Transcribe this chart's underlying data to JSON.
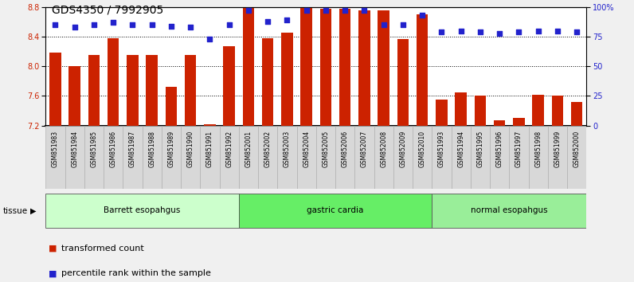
{
  "title": "GDS4350 / 7992905",
  "samples": [
    "GSM851983",
    "GSM851984",
    "GSM851985",
    "GSM851986",
    "GSM851987",
    "GSM851988",
    "GSM851989",
    "GSM851990",
    "GSM851991",
    "GSM851992",
    "GSM852001",
    "GSM852002",
    "GSM852003",
    "GSM852004",
    "GSM852005",
    "GSM852006",
    "GSM852007",
    "GSM852008",
    "GSM852009",
    "GSM852010",
    "GSM851993",
    "GSM851994",
    "GSM851995",
    "GSM851996",
    "GSM851997",
    "GSM851998",
    "GSM851999",
    "GSM852000"
  ],
  "bar_values": [
    8.18,
    8.0,
    8.15,
    8.38,
    8.15,
    8.15,
    7.72,
    8.15,
    7.22,
    8.27,
    8.8,
    8.38,
    8.45,
    8.8,
    8.78,
    8.78,
    8.75,
    8.75,
    8.37,
    8.7,
    7.55,
    7.65,
    7.6,
    7.27,
    7.3,
    7.62,
    7.6,
    7.52
  ],
  "percentile_values": [
    85,
    83,
    85,
    87,
    85,
    85,
    84,
    83,
    73,
    85,
    97,
    88,
    89,
    97,
    97,
    97,
    97,
    85,
    85,
    93,
    79,
    80,
    79,
    78,
    79,
    80,
    80,
    79
  ],
  "tissue_groups": [
    {
      "label": "Barrett esopahgus",
      "start": 0,
      "end": 9,
      "color": "#ccffcc"
    },
    {
      "label": "gastric cardia",
      "start": 10,
      "end": 19,
      "color": "#66ee66"
    },
    {
      "label": "normal esopahgus",
      "start": 20,
      "end": 27,
      "color": "#99ee99"
    }
  ],
  "ylim_left": [
    7.2,
    8.8
  ],
  "ylim_right": [
    0,
    100
  ],
  "yticks_left": [
    7.2,
    7.6,
    8.0,
    8.4,
    8.8
  ],
  "yticks_right": [
    0,
    25,
    50,
    75,
    100
  ],
  "ytick_labels_right": [
    "0",
    "25",
    "50",
    "75",
    "100%"
  ],
  "bar_color": "#cc2200",
  "dot_color": "#2222cc",
  "bar_width": 0.6,
  "bg_color": "#ffffff",
  "xlabel_bg": "#d8d8d8",
  "fig_bg": "#f0f0f0",
  "title_fontsize": 10,
  "tick_label_fontsize": 5.5,
  "legend_items": [
    {
      "color": "#cc2200",
      "label": "transformed count"
    },
    {
      "color": "#2222cc",
      "label": "percentile rank within the sample"
    }
  ]
}
